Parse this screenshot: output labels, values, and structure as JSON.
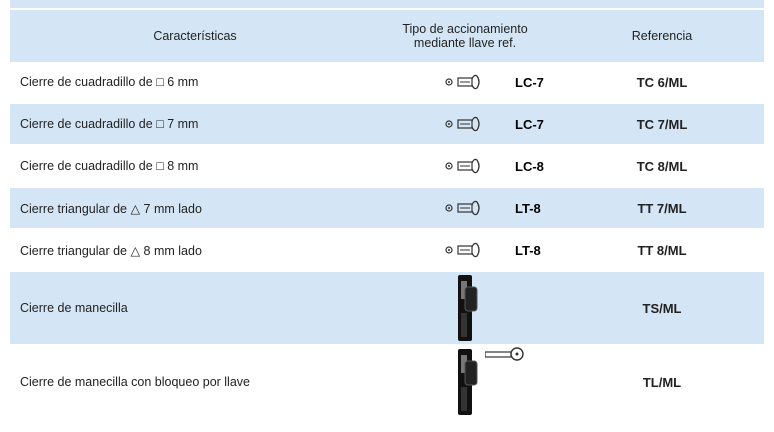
{
  "table": {
    "header": {
      "characteristics": "Características",
      "key_type_line1": "Tipo de accionamiento",
      "key_type_line2": "mediante llave ref.",
      "reference": "Referencia"
    },
    "rows": [
      {
        "characteristic": "Cierre de cuadradillo de □ 6 mm",
        "key": "LC-7",
        "reference": "TC 6/ML"
      },
      {
        "characteristic": "Cierre de cuadradillo de □ 7 mm",
        "key": "LC-7",
        "reference": "TC 7/ML"
      },
      {
        "characteristic": "Cierre de cuadradillo de □ 8 mm",
        "key": "LC-8",
        "reference": "TC 8/ML"
      },
      {
        "characteristic": "Cierre triangular de △ 7 mm lado",
        "key": "LT-8",
        "reference": "TT 7/ML"
      },
      {
        "characteristic": "Cierre triangular de △ 8 mm lado",
        "key": "LT-8",
        "reference": "TT 8/ML"
      },
      {
        "characteristic": "Cierre de manecilla",
        "reference": "TS/ML"
      },
      {
        "characteristic": "Cierre de manecilla con bloqueo por llave",
        "reference": "TL/ML"
      }
    ]
  }
}
